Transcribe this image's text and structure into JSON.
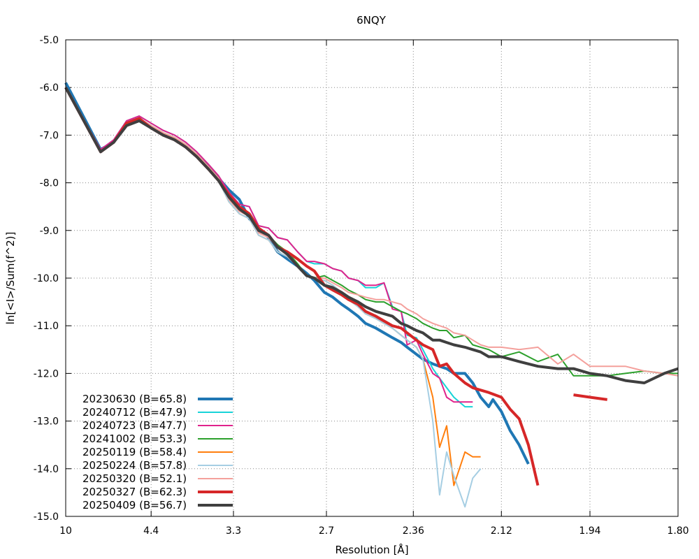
{
  "chart_data": {
    "type": "line",
    "title": "6NQY",
    "xlabel": "Resolution [Å]",
    "ylabel": "ln[<I>/Sum(f^2)]",
    "x_scale": "1/d^2",
    "xlim": [
      10,
      1.8
    ],
    "ylim": [
      -15.0,
      -5.0
    ],
    "x_ticks": [
      "10",
      "4.4",
      "3.3",
      "2.7",
      "2.36",
      "2.12",
      "1.94",
      "1.80"
    ],
    "y_ticks": [
      "-5.0",
      "-6.0",
      "-7.0",
      "-8.0",
      "-9.0",
      "-10.0",
      "-11.0",
      "-12.0",
      "-13.0",
      "-14.0",
      "-15.0"
    ],
    "grid": true,
    "legend_position": "bottom-left",
    "series": [
      {
        "name": "20230630 (B=65.8)",
        "color": "#1f77b4",
        "width": 4,
        "x": [
          10.0,
          6.08,
          5.47,
          5.02,
          4.67,
          4.4,
          4.17,
          3.98,
          3.82,
          3.68,
          3.55,
          3.44,
          3.34,
          3.25,
          3.17,
          3.1,
          3.03,
          2.97,
          2.91,
          2.85,
          2.8,
          2.76,
          2.71,
          2.67,
          2.63,
          2.6,
          2.56,
          2.53,
          2.49,
          2.46,
          2.43,
          2.4,
          2.38,
          2.35,
          2.33,
          2.3,
          2.28,
          2.26,
          2.24,
          2.21,
          2.19,
          2.17,
          2.15,
          2.14,
          2.12,
          2.1,
          2.08,
          2.06
        ],
        "y": [
          -5.9,
          -7.3,
          -7.15,
          -6.75,
          -6.65,
          -6.85,
          -7.0,
          -7.1,
          -7.25,
          -7.45,
          -7.65,
          -7.9,
          -8.15,
          -8.35,
          -8.75,
          -8.95,
          -9.15,
          -9.45,
          -9.6,
          -9.75,
          -9.9,
          -10.05,
          -10.3,
          -10.4,
          -10.55,
          -10.65,
          -10.8,
          -10.95,
          -11.05,
          -11.15,
          -11.25,
          -11.35,
          -11.45,
          -11.6,
          -11.7,
          -11.8,
          -11.85,
          -11.9,
          -12.0,
          -12.0,
          -12.2,
          -12.5,
          -12.7,
          -12.55,
          -12.8,
          -13.2,
          -13.5,
          -13.9
        ]
      },
      {
        "name": "20240712 (B=47.9)",
        "color": "#17d3d8",
        "width": 2,
        "x": [
          10.0,
          6.08,
          5.47,
          5.02,
          4.67,
          4.4,
          4.17,
          3.98,
          3.82,
          3.68,
          3.55,
          3.44,
          3.34,
          3.25,
          3.17,
          3.1,
          3.03,
          2.97,
          2.91,
          2.85,
          2.8,
          2.76,
          2.71,
          2.67,
          2.63,
          2.6,
          2.56,
          2.53,
          2.49,
          2.46,
          2.43,
          2.4,
          2.38,
          2.35,
          2.33,
          2.3,
          2.28,
          2.26,
          2.24,
          2.21,
          2.19
        ],
        "y": [
          -6.0,
          -7.3,
          -7.1,
          -6.7,
          -6.6,
          -6.75,
          -6.9,
          -7.0,
          -7.15,
          -7.35,
          -7.6,
          -7.85,
          -8.2,
          -8.45,
          -8.5,
          -8.9,
          -8.95,
          -9.15,
          -9.2,
          -9.45,
          -9.65,
          -9.7,
          -9.7,
          -9.8,
          -9.85,
          -10.0,
          -10.05,
          -10.2,
          -10.2,
          -10.1,
          -10.6,
          -10.7,
          -11.2,
          -11.25,
          -11.5,
          -11.9,
          -12.1,
          -12.3,
          -12.5,
          -12.7,
          -12.7
        ]
      },
      {
        "name": "20240723 (B=47.7)",
        "color": "#e0238c",
        "width": 2,
        "x": [
          10.0,
          6.08,
          5.47,
          5.02,
          4.67,
          4.4,
          4.17,
          3.98,
          3.82,
          3.68,
          3.55,
          3.44,
          3.34,
          3.25,
          3.17,
          3.1,
          3.03,
          2.97,
          2.91,
          2.85,
          2.8,
          2.76,
          2.71,
          2.67,
          2.63,
          2.6,
          2.56,
          2.53,
          2.49,
          2.46,
          2.43,
          2.4,
          2.38,
          2.35,
          2.33,
          2.3,
          2.28,
          2.26,
          2.24,
          2.21,
          2.19
        ],
        "y": [
          -6.0,
          -7.3,
          -7.1,
          -6.7,
          -6.6,
          -6.75,
          -6.9,
          -7.0,
          -7.15,
          -7.35,
          -7.6,
          -7.85,
          -8.2,
          -8.45,
          -8.5,
          -8.9,
          -8.95,
          -9.15,
          -9.2,
          -9.45,
          -9.65,
          -9.65,
          -9.7,
          -9.8,
          -9.85,
          -10.0,
          -10.05,
          -10.15,
          -10.15,
          -10.1,
          -10.65,
          -10.7,
          -11.4,
          -11.3,
          -11.6,
          -12.0,
          -12.1,
          -12.5,
          -12.6,
          -12.6,
          -12.6
        ]
      },
      {
        "name": "20241002 (B=53.3)",
        "color": "#2ca02c",
        "width": 2,
        "x": [
          10.0,
          6.08,
          5.47,
          5.02,
          4.67,
          4.4,
          4.17,
          3.98,
          3.82,
          3.68,
          3.55,
          3.44,
          3.34,
          3.25,
          3.17,
          3.1,
          3.03,
          2.97,
          2.91,
          2.85,
          2.8,
          2.76,
          2.71,
          2.67,
          2.63,
          2.6,
          2.56,
          2.53,
          2.49,
          2.46,
          2.43,
          2.4,
          2.38,
          2.35,
          2.33,
          2.3,
          2.28,
          2.26,
          2.24,
          2.21,
          2.19,
          2.17,
          2.15,
          2.12,
          2.08,
          2.04,
          2.0,
          1.97,
          1.94,
          1.91,
          1.88,
          1.85,
          1.82,
          1.8
        ],
        "y": [
          -6.0,
          -7.35,
          -7.15,
          -6.75,
          -6.65,
          -6.8,
          -6.95,
          -7.05,
          -7.2,
          -7.4,
          -7.65,
          -7.9,
          -8.3,
          -8.55,
          -8.65,
          -9.0,
          -9.1,
          -9.3,
          -9.45,
          -9.7,
          -9.95,
          -10.0,
          -9.95,
          -10.05,
          -10.15,
          -10.25,
          -10.35,
          -10.45,
          -10.5,
          -10.5,
          -10.6,
          -10.7,
          -10.75,
          -10.85,
          -10.95,
          -11.05,
          -11.1,
          -11.1,
          -11.25,
          -11.2,
          -11.4,
          -11.45,
          -11.5,
          -11.65,
          -11.55,
          -11.75,
          -11.6,
          -12.05,
          -12.05,
          -12.05,
          -12.0,
          -11.95,
          -12.0,
          -12.0
        ]
      },
      {
        "name": "20250119 (B=58.4)",
        "color": "#ff7f0e",
        "width": 2,
        "x": [
          10.0,
          6.08,
          5.47,
          5.02,
          4.67,
          4.4,
          4.17,
          3.98,
          3.82,
          3.68,
          3.55,
          3.44,
          3.34,
          3.25,
          3.17,
          3.1,
          3.03,
          2.97,
          2.91,
          2.85,
          2.8,
          2.76,
          2.71,
          2.67,
          2.63,
          2.6,
          2.56,
          2.53,
          2.49,
          2.46,
          2.43,
          2.4,
          2.38,
          2.35,
          2.33,
          2.3,
          2.28,
          2.26,
          2.24,
          2.21,
          2.19,
          2.17
        ],
        "y": [
          -6.0,
          -7.35,
          -7.15,
          -6.75,
          -6.65,
          -6.85,
          -7.0,
          -7.1,
          -7.25,
          -7.45,
          -7.7,
          -7.95,
          -8.4,
          -8.65,
          -8.75,
          -9.1,
          -9.2,
          -9.45,
          -9.55,
          -9.75,
          -9.95,
          -10.0,
          -10.05,
          -10.15,
          -10.3,
          -10.45,
          -10.6,
          -10.75,
          -10.85,
          -10.95,
          -11.05,
          -11.2,
          -11.3,
          -11.45,
          -11.7,
          -12.5,
          -13.55,
          -13.1,
          -14.35,
          -13.65,
          -13.75,
          -13.75
        ]
      },
      {
        "name": "20250224 (B=57.8)",
        "color": "#a6cee3",
        "width": 2,
        "x": [
          10.0,
          6.08,
          5.47,
          5.02,
          4.67,
          4.4,
          4.17,
          3.98,
          3.82,
          3.68,
          3.55,
          3.44,
          3.34,
          3.25,
          3.17,
          3.1,
          3.03,
          2.97,
          2.91,
          2.85,
          2.8,
          2.76,
          2.71,
          2.67,
          2.63,
          2.6,
          2.56,
          2.53,
          2.49,
          2.46,
          2.43,
          2.4,
          2.38,
          2.35,
          2.33,
          2.3,
          2.28,
          2.26,
          2.24,
          2.21,
          2.19,
          2.17
        ],
        "y": [
          -6.0,
          -7.35,
          -7.15,
          -6.75,
          -6.65,
          -6.85,
          -7.0,
          -7.1,
          -7.25,
          -7.45,
          -7.7,
          -7.95,
          -8.4,
          -8.65,
          -8.75,
          -9.1,
          -9.2,
          -9.45,
          -9.55,
          -9.75,
          -9.95,
          -10.0,
          -10.05,
          -10.15,
          -10.3,
          -10.45,
          -10.6,
          -10.75,
          -10.85,
          -10.95,
          -11.05,
          -11.2,
          -11.3,
          -11.45,
          -11.7,
          -13.0,
          -14.55,
          -13.65,
          -14.15,
          -14.8,
          -14.2,
          -14.0
        ]
      },
      {
        "name": "20250320 (B=52.1)",
        "color": "#f4a09c",
        "width": 2,
        "x": [
          10.0,
          6.08,
          5.47,
          5.02,
          4.67,
          4.4,
          4.17,
          3.98,
          3.82,
          3.68,
          3.55,
          3.44,
          3.34,
          3.25,
          3.17,
          3.1,
          3.03,
          2.97,
          2.91,
          2.85,
          2.8,
          2.76,
          2.71,
          2.67,
          2.63,
          2.6,
          2.56,
          2.53,
          2.49,
          2.46,
          2.43,
          2.4,
          2.38,
          2.35,
          2.33,
          2.3,
          2.28,
          2.26,
          2.24,
          2.21,
          2.19,
          2.17,
          2.15,
          2.12,
          2.08,
          2.04,
          2.0,
          1.97,
          1.94,
          1.91,
          1.88,
          1.85,
          1.82,
          1.8
        ],
        "y": [
          -6.0,
          -7.35,
          -7.15,
          -6.75,
          -6.65,
          -6.8,
          -6.95,
          -7.05,
          -7.2,
          -7.4,
          -7.65,
          -7.9,
          -8.35,
          -8.6,
          -8.7,
          -9.05,
          -9.15,
          -9.35,
          -9.5,
          -9.75,
          -9.95,
          -10.0,
          -10.0,
          -10.1,
          -10.2,
          -10.3,
          -10.35,
          -10.4,
          -10.45,
          -10.45,
          -10.5,
          -10.55,
          -10.65,
          -10.75,
          -10.85,
          -10.95,
          -11.0,
          -11.05,
          -11.15,
          -11.2,
          -11.3,
          -11.4,
          -11.45,
          -11.45,
          -11.5,
          -11.45,
          -11.8,
          -11.6,
          -11.85,
          -11.85,
          -11.85,
          -11.95,
          -12.0,
          -12.05
        ]
      },
      {
        "name": "20250327 (B=62.3)",
        "color": "#d62728",
        "width": 4,
        "x": [
          10.0,
          6.08,
          5.47,
          5.02,
          4.67,
          4.4,
          4.17,
          3.98,
          3.82,
          3.68,
          3.55,
          3.44,
          3.34,
          3.25,
          3.17,
          3.1,
          3.03,
          2.97,
          2.91,
          2.85,
          2.8,
          2.76,
          2.71,
          2.67,
          2.63,
          2.6,
          2.56,
          2.53,
          2.49,
          2.46,
          2.43,
          2.4,
          2.38,
          2.35,
          2.33,
          2.3,
          2.28,
          2.26,
          2.24,
          2.21,
          2.19,
          2.17,
          2.15,
          2.12,
          2.1,
          2.08,
          2.06,
          2.04,
          null,
          1.97,
          1.94,
          1.91
        ],
        "y": [
          -6.0,
          -7.35,
          -7.15,
          -6.75,
          -6.65,
          -6.85,
          -7.0,
          -7.1,
          -7.25,
          -7.45,
          -7.7,
          -7.95,
          -8.25,
          -8.5,
          -8.65,
          -8.95,
          -9.1,
          -9.35,
          -9.45,
          -9.6,
          -9.75,
          -9.85,
          -10.15,
          -10.25,
          -10.35,
          -10.45,
          -10.55,
          -10.7,
          -10.8,
          -10.9,
          -11.0,
          -11.05,
          -11.15,
          -11.3,
          -11.4,
          -11.5,
          -11.85,
          -11.8,
          -12.0,
          -12.2,
          -12.3,
          -12.35,
          -12.4,
          -12.5,
          -12.75,
          -12.95,
          -13.5,
          -14.35,
          null,
          -12.45,
          -12.5,
          -12.55
        ]
      },
      {
        "name": "20250409 (B=56.7)",
        "color": "#3f3f3f",
        "width": 4,
        "x": [
          10.0,
          6.08,
          5.47,
          5.02,
          4.67,
          4.4,
          4.17,
          3.98,
          3.82,
          3.68,
          3.55,
          3.44,
          3.34,
          3.25,
          3.17,
          3.1,
          3.03,
          2.97,
          2.91,
          2.85,
          2.8,
          2.76,
          2.71,
          2.67,
          2.63,
          2.6,
          2.56,
          2.53,
          2.49,
          2.46,
          2.43,
          2.4,
          2.38,
          2.35,
          2.33,
          2.3,
          2.28,
          2.26,
          2.24,
          2.21,
          2.19,
          2.17,
          2.15,
          2.12,
          2.08,
          2.04,
          2.0,
          1.97,
          1.94,
          1.91,
          1.88,
          1.85,
          1.82,
          1.8
        ],
        "y": [
          -6.0,
          -7.35,
          -7.15,
          -6.8,
          -6.7,
          -6.85,
          -7.0,
          -7.1,
          -7.25,
          -7.45,
          -7.7,
          -7.95,
          -8.3,
          -8.55,
          -8.7,
          -9.0,
          -9.1,
          -9.35,
          -9.5,
          -9.75,
          -9.95,
          -10.0,
          -10.15,
          -10.2,
          -10.3,
          -10.4,
          -10.5,
          -10.6,
          -10.7,
          -10.75,
          -10.8,
          -10.95,
          -11.0,
          -11.1,
          -11.15,
          -11.3,
          -11.3,
          -11.35,
          -11.4,
          -11.45,
          -11.5,
          -11.55,
          -11.65,
          -11.65,
          -11.75,
          -11.85,
          -11.9,
          -11.9,
          -12.0,
          -12.05,
          -12.15,
          -12.2,
          -12.0,
          -11.9
        ]
      }
    ]
  }
}
